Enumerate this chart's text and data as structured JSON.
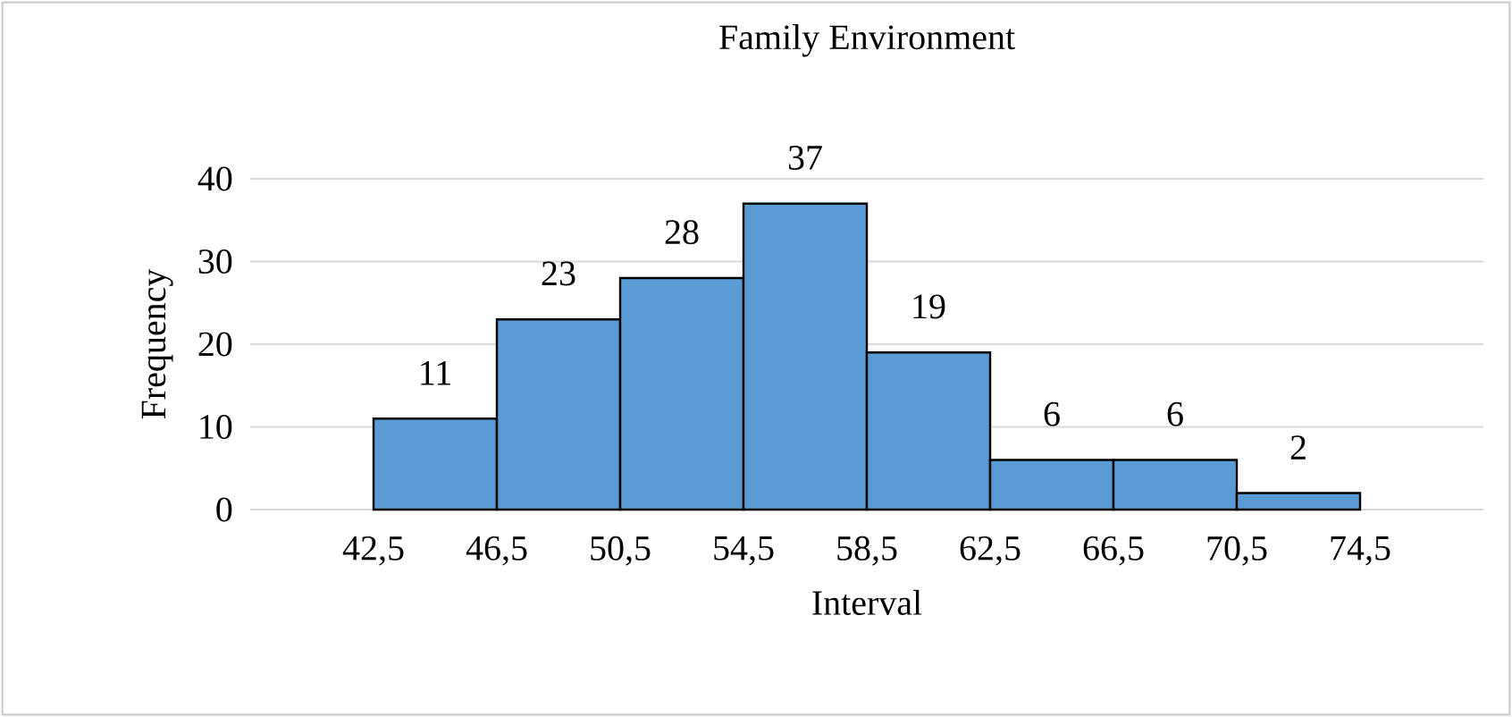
{
  "chart_data": {
    "type": "histogram",
    "title": "Family Environment",
    "xlabel": "Interval",
    "ylabel": "Frequency",
    "bins": [
      42.5,
      46.5,
      50.5,
      54.5,
      58.5,
      62.5,
      66.5,
      70.5,
      74.5
    ],
    "values": [
      11,
      23,
      28,
      37,
      19,
      6,
      6,
      2
    ],
    "color": "#5b9bd5",
    "data_labels": true,
    "grid": "y",
    "xlim": [
      38.5,
      78.5
    ],
    "ylim": [
      0,
      40
    ],
    "xticks": [
      {
        "value": 42.5,
        "label": "42,5"
      },
      {
        "value": 46.5,
        "label": "46,5"
      },
      {
        "value": 50.5,
        "label": "50,5"
      },
      {
        "value": 54.5,
        "label": "54,5"
      },
      {
        "value": 58.5,
        "label": "58,5"
      },
      {
        "value": 62.5,
        "label": "62,5"
      },
      {
        "value": 66.5,
        "label": "66,5"
      },
      {
        "value": 70.5,
        "label": "70,5"
      },
      {
        "value": 74.5,
        "label": "74,5"
      }
    ],
    "yticks": [
      0,
      10,
      20,
      30,
      40
    ]
  }
}
